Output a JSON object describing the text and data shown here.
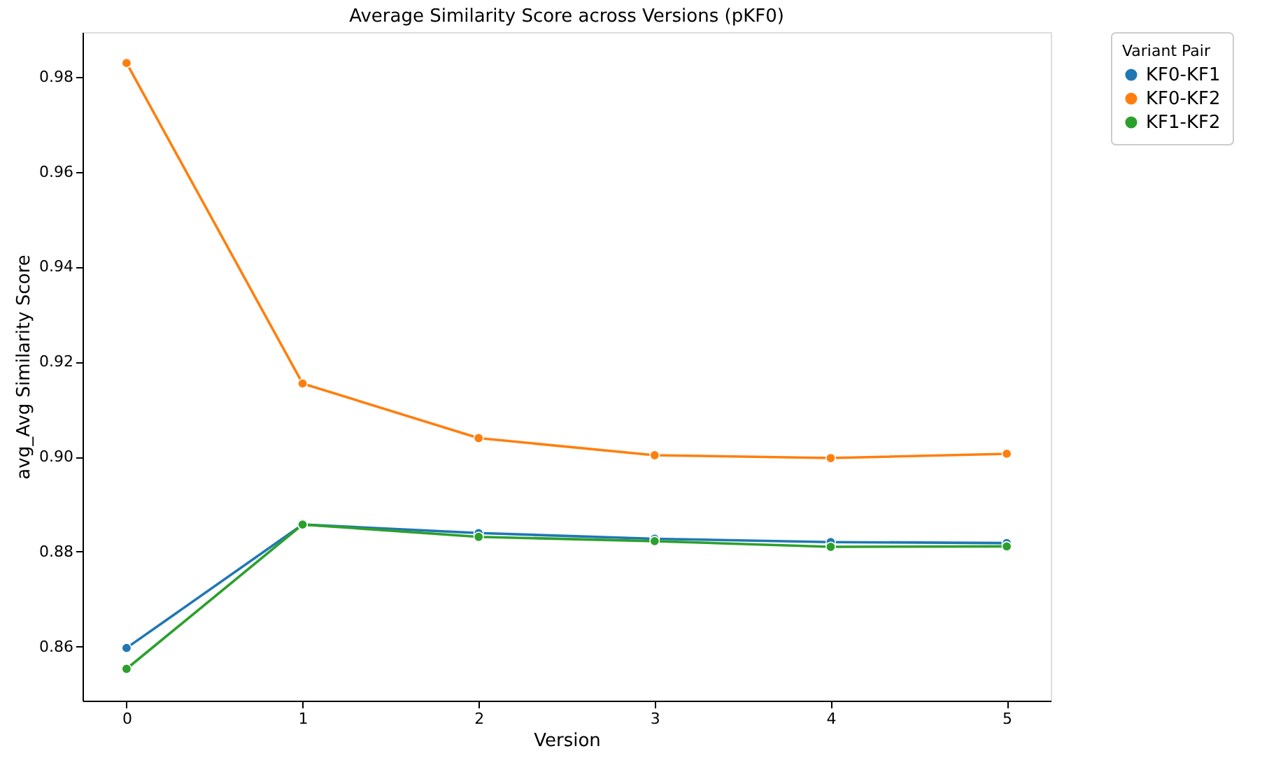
{
  "chart_data": {
    "type": "line",
    "title": "Average Similarity Score across Versions (pKF0)",
    "xlabel": "Version",
    "ylabel": "avg_Avg Similarity Score",
    "legend_title": "Variant Pair",
    "x": [
      0,
      1,
      2,
      3,
      4,
      5
    ],
    "series": [
      {
        "name": "KF0-KF1",
        "color": "#1f77b4",
        "values": [
          0.8597,
          0.8857,
          0.8839,
          0.8827,
          0.882,
          0.8818
        ]
      },
      {
        "name": "KF0-KF2",
        "color": "#ff7f0e",
        "values": [
          0.9829,
          0.9154,
          0.9039,
          0.9003,
          0.8997,
          0.9006
        ]
      },
      {
        "name": "KF1-KF2",
        "color": "#2ca02c",
        "values": [
          0.8553,
          0.8857,
          0.8831,
          0.8822,
          0.881,
          0.8811
        ]
      }
    ],
    "xlim": [
      -0.25,
      5.25
    ],
    "ylim": [
      0.8486,
      0.9894
    ],
    "xticks": [
      0,
      1,
      2,
      3,
      4,
      5
    ],
    "yticks": [
      {
        "value": 0.86,
        "label": "0.86"
      },
      {
        "value": 0.88,
        "label": "0.88"
      },
      {
        "value": 0.9,
        "label": "0.90"
      },
      {
        "value": 0.92,
        "label": "0.92"
      },
      {
        "value": 0.94,
        "label": "0.94"
      },
      {
        "value": 0.96,
        "label": "0.96"
      },
      {
        "value": 0.98,
        "label": "0.98"
      }
    ],
    "grid": false,
    "legend": "top right",
    "marker": "circle",
    "line_style": "solid"
  }
}
